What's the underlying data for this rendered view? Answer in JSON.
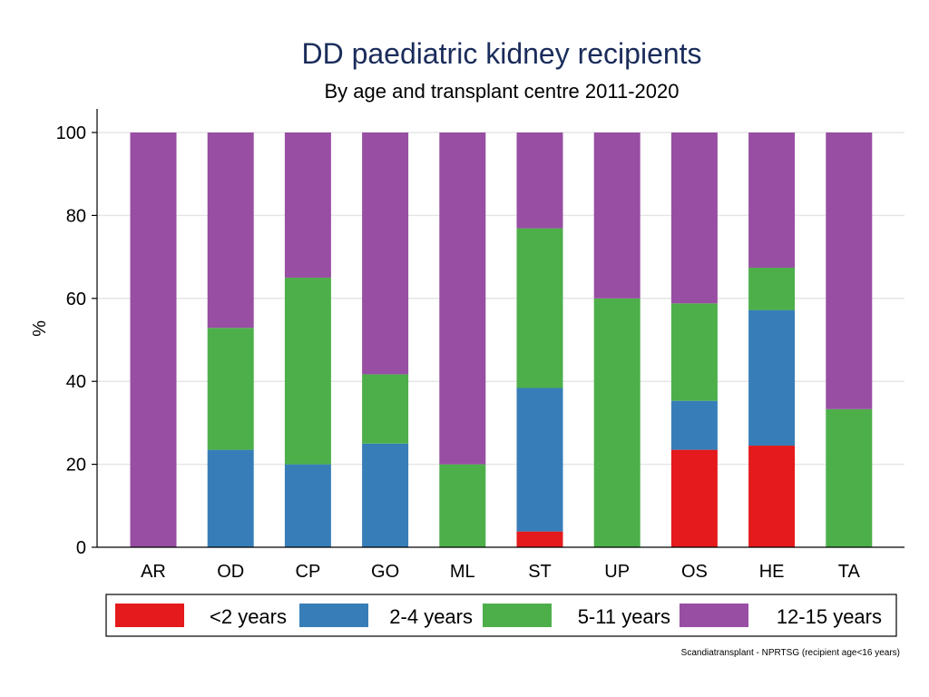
{
  "chart_data": {
    "type": "bar",
    "stacked": true,
    "title": "DD paediatric kidney recipients",
    "subtitle": "By age and transplant centre 2011-2020",
    "xlabel": "",
    "ylabel": "%",
    "ylim": [
      0,
      100
    ],
    "yticks": [
      "0",
      "20",
      "40",
      "60",
      "80",
      "100"
    ],
    "grid": true,
    "categories": [
      "AR",
      "OD",
      "CP",
      "GO",
      "ML",
      "ST",
      "UP",
      "OS",
      "HE",
      "TA"
    ],
    "series": [
      {
        "name": "<2 years",
        "color": "#e41a1c",
        "values": [
          0,
          0,
          0,
          0,
          0,
          3.8,
          0,
          23.5,
          24.5,
          0
        ]
      },
      {
        "name": "2-4 years",
        "color": "#377eb8",
        "values": [
          0,
          23.5,
          20,
          25,
          0,
          34.6,
          0,
          11.8,
          32.7,
          0
        ]
      },
      {
        "name": "5-11 years",
        "color": "#4daf4a",
        "values": [
          0,
          29.4,
          45,
          16.7,
          20,
          38.5,
          60,
          23.5,
          10.2,
          33.3
        ]
      },
      {
        "name": "12-15 years",
        "color": "#984ea3",
        "values": [
          100,
          47.1,
          35,
          58.3,
          80,
          23.1,
          40,
          41.2,
          32.6,
          66.7
        ]
      }
    ],
    "legend_position": "bottom",
    "note": "Scandiatransplant - NPRTSG (recipient age<16 years)"
  }
}
